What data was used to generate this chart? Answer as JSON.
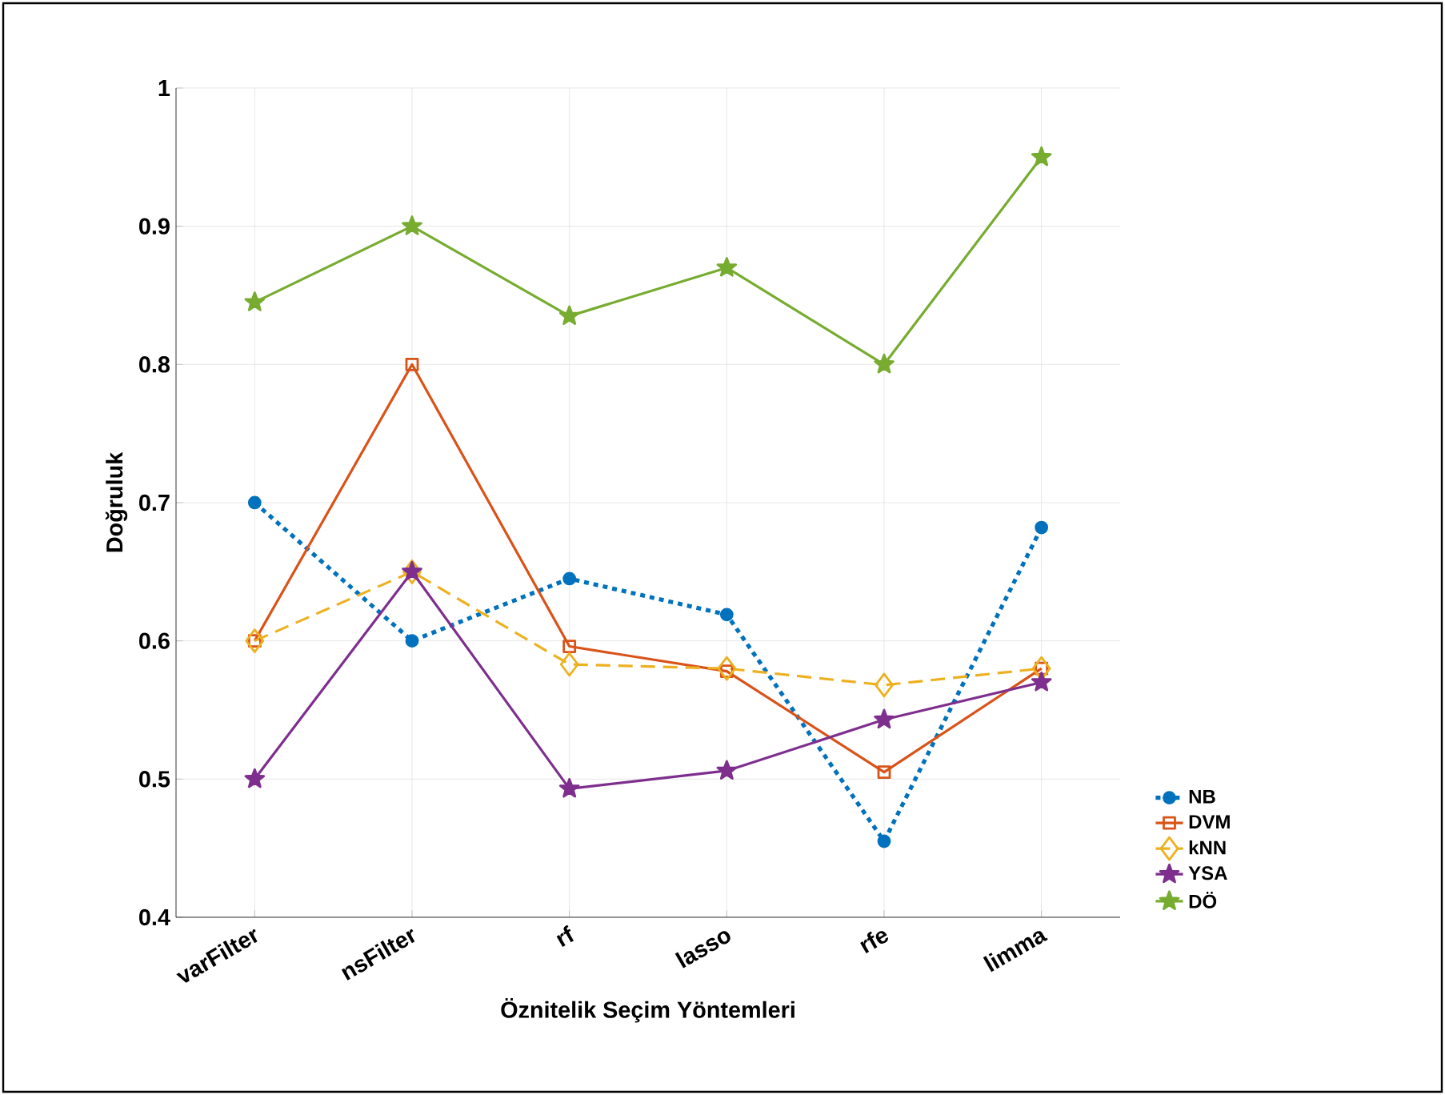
{
  "chart_data": {
    "type": "line",
    "xlabel": "Öznitelik Seçim Yöntemleri",
    "ylabel": "Doğruluk",
    "categories": [
      "varFilter",
      "nsFilter",
      "rf",
      "lasso",
      "rfe",
      "limma"
    ],
    "ylim": [
      0.4,
      1
    ],
    "yticks": [
      0.4,
      0.5,
      0.6,
      0.7,
      0.8,
      0.9,
      1
    ],
    "grid": true,
    "legend": "bottom right",
    "series": [
      {
        "name": "NB",
        "color": "#0072bd",
        "marker": "circle",
        "line_style": "dotted",
        "values": [
          0.7,
          0.6,
          0.645,
          0.619,
          0.455,
          0.682
        ]
      },
      {
        "name": "DVM",
        "color": "#d95319",
        "marker": "square",
        "line_style": "solid",
        "values": [
          0.6,
          0.8,
          0.596,
          0.578,
          0.505,
          0.58
        ]
      },
      {
        "name": "kNN",
        "color": "#edb120",
        "marker": "diamond",
        "line_style": "dashed",
        "values": [
          0.6,
          0.65,
          0.583,
          0.58,
          0.568,
          0.58
        ]
      },
      {
        "name": "YSA",
        "color": "#7e2f8e",
        "marker": "star",
        "line_style": "solid",
        "values": [
          0.5,
          0.65,
          0.493,
          0.506,
          0.543,
          0.57
        ]
      },
      {
        "name": "DÖ",
        "color": "#77ac30",
        "marker": "star",
        "line_style": "solid",
        "values": [
          0.845,
          0.9,
          0.835,
          0.87,
          0.8,
          0.95
        ]
      }
    ]
  }
}
